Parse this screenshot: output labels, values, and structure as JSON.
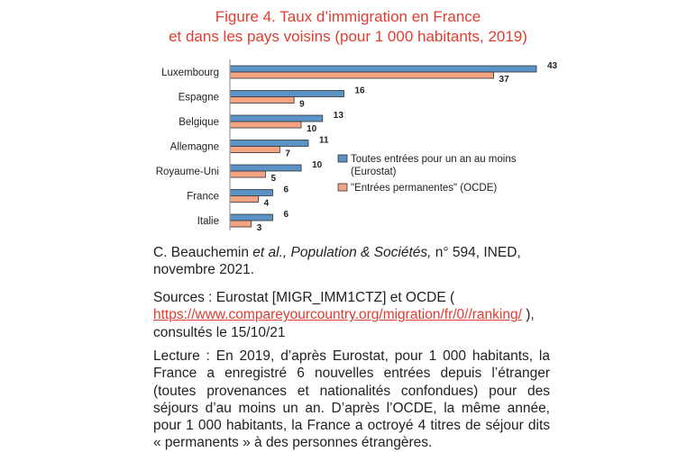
{
  "title_line1": "Figure 4. Taux d’immigration en France",
  "title_line2": "et dans les pays voisins (pour 1 000 habitants, 2019)",
  "chart_data": {
    "type": "bar",
    "orientation": "horizontal",
    "categories": [
      "Luxembourg",
      "Espagne",
      "Belgique",
      "Allemagne",
      "Royaume-Uni",
      "France",
      "Italie"
    ],
    "series": [
      {
        "name": "Toutes entrées pour un an au moins (Eurostat)",
        "values": [
          43,
          16,
          13,
          11,
          10,
          6,
          6
        ],
        "color": "#5b93c7"
      },
      {
        "name": "\"Entrées permanentes\" (OCDE)",
        "values": [
          37,
          9,
          10,
          7,
          5,
          4,
          3
        ],
        "color": "#f4a383"
      }
    ],
    "legend_lines": [
      [
        "Toutes entrées pour un an au moins",
        "(Eurostat)"
      ],
      [
        "\"Entrées permanentes\" (OCDE)"
      ]
    ],
    "xlim": [
      0,
      43
    ],
    "grid": false,
    "legend_position": "right"
  },
  "citation": {
    "author": "C. Beauchemin ",
    "etal": "et al., Population & Sociétés,",
    "rest": " n° 594, INED, novembre 2021."
  },
  "sources": {
    "prefix": "Sources : Eurostat [MIGR_IMM1CTZ] et OCDE ( ",
    "link": "https://www.compareyourcountry.org/migration/fr/0//ranking/",
    "suffix": " ), consultés le 15/10/21"
  },
  "lecture": "Lecture : En 2019, d’après Eurostat, pour 1 000 habitants, la France a enregistré 6 nouvelles entrées depuis l’étranger (toutes provenances et nationalités confondues) pour des séjours d’au moins un an. D’après l’OCDE, la même année, pour 1 000 habitants, la France a octroyé 4 titres de séjour dits « permanents » à des personnes étrangères."
}
